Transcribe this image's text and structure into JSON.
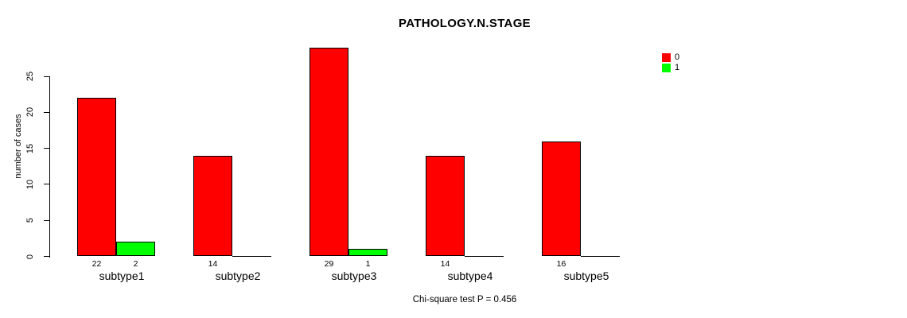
{
  "title": "PATHOLOGY.N.STAGE",
  "ylabel": "number of cases",
  "footer": "Chi-square test P = 0.456",
  "legend": {
    "position": "top-right",
    "items": [
      {
        "label": "0",
        "color": "#FF0000"
      },
      {
        "label": "1",
        "color": "#00FF00"
      }
    ]
  },
  "chart_data": {
    "type": "bar",
    "title": "PATHOLOGY.N.STAGE",
    "xlabel": "",
    "ylabel": "number of cases",
    "categories": [
      "subtype1",
      "subtype2",
      "subtype3",
      "subtype4",
      "subtype5"
    ],
    "series": [
      {
        "name": "0",
        "color": "#FF0000",
        "values": [
          22,
          14,
          29,
          14,
          16
        ]
      },
      {
        "name": "1",
        "color": "#00FF00",
        "values": [
          2,
          0,
          1,
          0,
          0
        ]
      }
    ],
    "bar_value_labels": {
      "shown": true,
      "hidden_when_zero": true
    },
    "yticks": [
      0,
      5,
      10,
      15,
      20,
      25
    ],
    "ylim": [
      0,
      29
    ],
    "grid": false,
    "annotation": "Chi-square test P = 0.456",
    "legend_entries": [
      "0",
      "1"
    ]
  }
}
